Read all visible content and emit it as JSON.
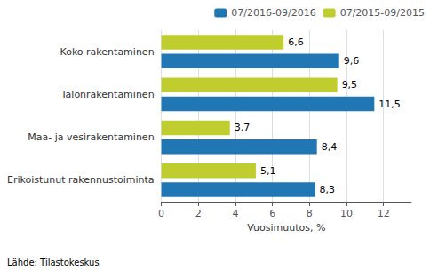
{
  "chart_data": {
    "type": "bar",
    "orientation": "horizontal",
    "categories": [
      "Erikoistunut rakennustoiminta",
      "Maa- ja vesirakentaminen",
      "Talonrakentaminen",
      "Koko rakentaminen"
    ],
    "series": [
      {
        "name": "07/2016-09/2016",
        "color": "#2077B4",
        "values": [
          8.3,
          8.4,
          11.5,
          9.6
        ],
        "value_labels": [
          "8,3",
          "8,4",
          "11,5",
          "9,6"
        ]
      },
      {
        "name": "07/2015-09/2015",
        "color": "#BFCE2E",
        "values": [
          5.1,
          3.7,
          9.5,
          6.6
        ],
        "value_labels": [
          "5,1",
          "3,7",
          "9,5",
          "6,6"
        ]
      }
    ],
    "xlabel": "Vuosimuutos, %",
    "xlim": [
      0,
      13.5
    ],
    "xticks": [
      0,
      2,
      4,
      6,
      8,
      10,
      12
    ],
    "grid": true,
    "legend": "upper right",
    "data_labels": true,
    "annotations": [
      "Lähde: Tilastokeskus"
    ]
  }
}
